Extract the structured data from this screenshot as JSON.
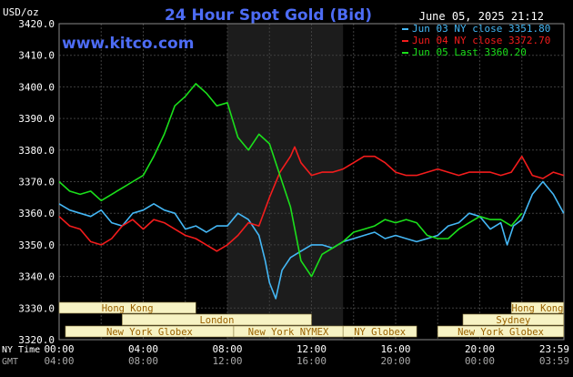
{
  "header": {
    "title": "24 Hour Spot Gold (Bid)",
    "datetime": "June 05, 2025 21:12",
    "unit": "USD/oz",
    "watermark": "www.kitco.com"
  },
  "colors": {
    "background": "#000000",
    "plot_bg": "#000000",
    "highlight_bg": "#1c1c1c",
    "grid": "#3f3f3f",
    "axis_text": "#ffffff",
    "title": "#4d6cf5",
    "watermark": "#4d6cf5",
    "session_fill": "#f7f3c4",
    "session_text": "#9a6200",
    "jun03": "#44b7f5",
    "jun04": "#f31c1c",
    "jun05": "#1bdf1b"
  },
  "chart_data": {
    "type": "line",
    "title": "24 Hour Spot Gold (Bid)",
    "ylabel": "USD/oz",
    "ylim": [
      3320,
      3420
    ],
    "yticks": [
      "3420.0",
      "3410.0",
      "3400.0",
      "3390.0",
      "3380.0",
      "3370.0",
      "3360.0",
      "3350.0",
      "3340.0",
      "3330.0",
      "3320.0"
    ],
    "xlim": [
      0,
      24
    ],
    "x_unit": "hours NY time",
    "xticks_ny_label": "NY Time",
    "xticks_gmt_label": "GMT",
    "xticks_ny": [
      "00:00",
      "04:00",
      "08:00",
      "12:00",
      "16:00",
      "20:00",
      "23:59"
    ],
    "xticks_gmt": [
      "04:00",
      "08:00",
      "12:00",
      "16:00",
      "20:00",
      "00:00",
      "03:59"
    ],
    "highlight_range": [
      8,
      13.5
    ],
    "legend": [
      "Jun 03 NY close 3351.80",
      "Jun 04 NY close 3372.70",
      "Jun 05 Last 3360.20"
    ],
    "legend_position": "top-right",
    "grid": true,
    "series": [
      {
        "name": "Jun 03 NY close 3351.80",
        "x": [
          0,
          0.5,
          1,
          1.5,
          2,
          2.5,
          3,
          3.5,
          4,
          4.5,
          5,
          5.5,
          6,
          6.5,
          7,
          7.5,
          8,
          8.5,
          9,
          9.5,
          9.8,
          10,
          10.3,
          10.6,
          11,
          11.5,
          12,
          12.5,
          13,
          13.5,
          14,
          14.5,
          15,
          15.5,
          16,
          16.5,
          17,
          17.5,
          18,
          18.5,
          19,
          19.5,
          20,
          20.5,
          21,
          21.3,
          21.6,
          22,
          22.5,
          23,
          23.5,
          23.99
        ],
        "values": [
          3363,
          3361,
          3360,
          3359,
          3361,
          3357,
          3356,
          3360,
          3361,
          3363,
          3361,
          3360,
          3355,
          3356,
          3354,
          3356,
          3356,
          3360,
          3358,
          3353,
          3345,
          3338,
          3333,
          3342,
          3346,
          3348,
          3350,
          3350,
          3349,
          3351,
          3352,
          3353,
          3354,
          3352,
          3353,
          3352,
          3351,
          3352,
          3353,
          3356,
          3357,
          3360,
          3359,
          3355,
          3357,
          3350,
          3356,
          3358,
          3366,
          3370,
          3366,
          3360
        ]
      },
      {
        "name": "Jun 04 NY close 3372.70",
        "x": [
          0,
          0.5,
          1,
          1.5,
          2,
          2.5,
          3,
          3.5,
          4,
          4.5,
          5,
          5.5,
          6,
          6.5,
          7,
          7.5,
          8,
          8.5,
          9,
          9.5,
          10,
          10.5,
          11,
          11.2,
          11.5,
          12,
          12.5,
          13,
          13.5,
          14,
          14.5,
          15,
          15.5,
          16,
          16.5,
          17,
          17.5,
          18,
          18.5,
          19,
          19.5,
          20,
          20.5,
          21,
          21.5,
          22,
          22.5,
          23,
          23.5,
          23.99
        ],
        "values": [
          3359,
          3356,
          3355,
          3351,
          3350,
          3352,
          3356,
          3358,
          3355,
          3358,
          3357,
          3355,
          3353,
          3352,
          3350,
          3348,
          3350,
          3353,
          3357,
          3356,
          3365,
          3373,
          3378,
          3381,
          3376,
          3372,
          3373,
          3373,
          3374,
          3376,
          3378,
          3378,
          3376,
          3373,
          3372,
          3372,
          3373,
          3374,
          3373,
          3372,
          3373,
          3373,
          3373,
          3372,
          3373,
          3378,
          3372,
          3371,
          3373,
          3372
        ]
      },
      {
        "name": "Jun 05 Last 3360.20",
        "x": [
          0,
          0.5,
          1,
          1.5,
          2,
          2.5,
          3,
          3.5,
          4,
          4.5,
          5,
          5.5,
          6,
          6.5,
          7,
          7.5,
          8,
          8.5,
          9,
          9.5,
          10,
          10.5,
          11,
          11.5,
          12,
          12.5,
          13,
          13.5,
          14,
          14.5,
          15,
          15.5,
          16,
          16.5,
          17,
          17.5,
          18,
          18.5,
          19,
          19.5,
          20,
          20.5,
          21,
          21.5,
          22
        ],
        "values": [
          3370,
          3367,
          3366,
          3367,
          3364,
          3366,
          3368,
          3370,
          3372,
          3378,
          3385,
          3394,
          3397,
          3401,
          3398,
          3394,
          3395,
          3384,
          3380,
          3385,
          3382,
          3372,
          3362,
          3345,
          3340,
          3347,
          3349,
          3351,
          3354,
          3355,
          3356,
          3358,
          3357,
          3358,
          3357,
          3353,
          3352,
          3352,
          3355,
          3357,
          3359,
          3358,
          3358,
          3356,
          3360
        ]
      }
    ],
    "sessions": [
      {
        "label": "Hong Kong",
        "start": 0,
        "end": 6.5,
        "row": 0
      },
      {
        "label": "Hong Kong",
        "start": 21.5,
        "end": 23.99,
        "row": 0
      },
      {
        "label": "London",
        "start": 3,
        "end": 12,
        "row": 1
      },
      {
        "label": "Sydney",
        "start": 19.2,
        "end": 23.99,
        "row": 1
      },
      {
        "label": "New York Globex",
        "start": 0.3,
        "end": 8.3,
        "row": 2
      },
      {
        "label": "New York NYMEX",
        "start": 8.3,
        "end": 13.5,
        "row": 2
      },
      {
        "label": "NY Globex",
        "start": 13.5,
        "end": 17,
        "row": 2
      },
      {
        "label": "New York Globex",
        "start": 18,
        "end": 23.99,
        "row": 2
      }
    ]
  }
}
